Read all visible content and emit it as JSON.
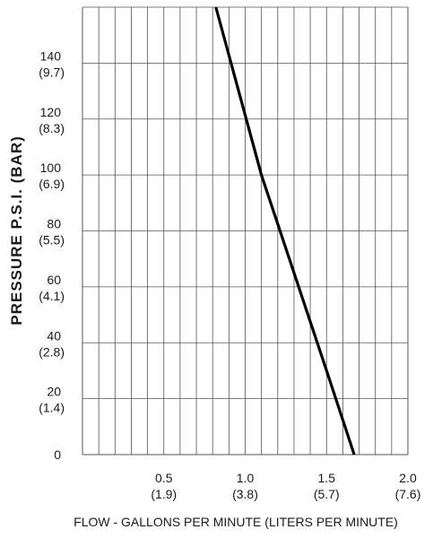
{
  "chart_data": {
    "type": "line",
    "title": "",
    "xlabel": "FLOW - GALLONS PER MINUTE  (LITERS PER MINUTE)",
    "ylabel": "PRESSURE  P.S.I.   (BAR)",
    "xlim": [
      0,
      2.0
    ],
    "ylim": [
      0,
      160
    ],
    "grid": true,
    "x_ticks": [
      {
        "value": 0.5,
        "label": "0.5",
        "sublabel": "(1.9)"
      },
      {
        "value": 1.0,
        "label": "1.0",
        "sublabel": "(3.8)"
      },
      {
        "value": 1.5,
        "label": "1.5",
        "sublabel": "(5.7)"
      },
      {
        "value": 2.0,
        "label": "2.0",
        "sublabel": "(7.6)"
      }
    ],
    "y_ticks": [
      {
        "value": 0,
        "label": "0",
        "sublabel": ""
      },
      {
        "value": 20,
        "label": "20",
        "sublabel": "(1.4)"
      },
      {
        "value": 40,
        "label": "40",
        "sublabel": "(2.8)"
      },
      {
        "value": 60,
        "label": "60",
        "sublabel": "(4.1)"
      },
      {
        "value": 80,
        "label": "80",
        "sublabel": "(5.5)"
      },
      {
        "value": 100,
        "label": "100",
        "sublabel": "(6.9)"
      },
      {
        "value": 120,
        "label": "120",
        "sublabel": "(8.3)"
      },
      {
        "value": 140,
        "label": "140",
        "sublabel": "(9.7)"
      }
    ],
    "series": [
      {
        "x": [
          0.82,
          1.1,
          1.5,
          1.67
        ],
        "y": [
          160,
          100,
          30,
          0
        ],
        "color": "#000000"
      }
    ]
  }
}
